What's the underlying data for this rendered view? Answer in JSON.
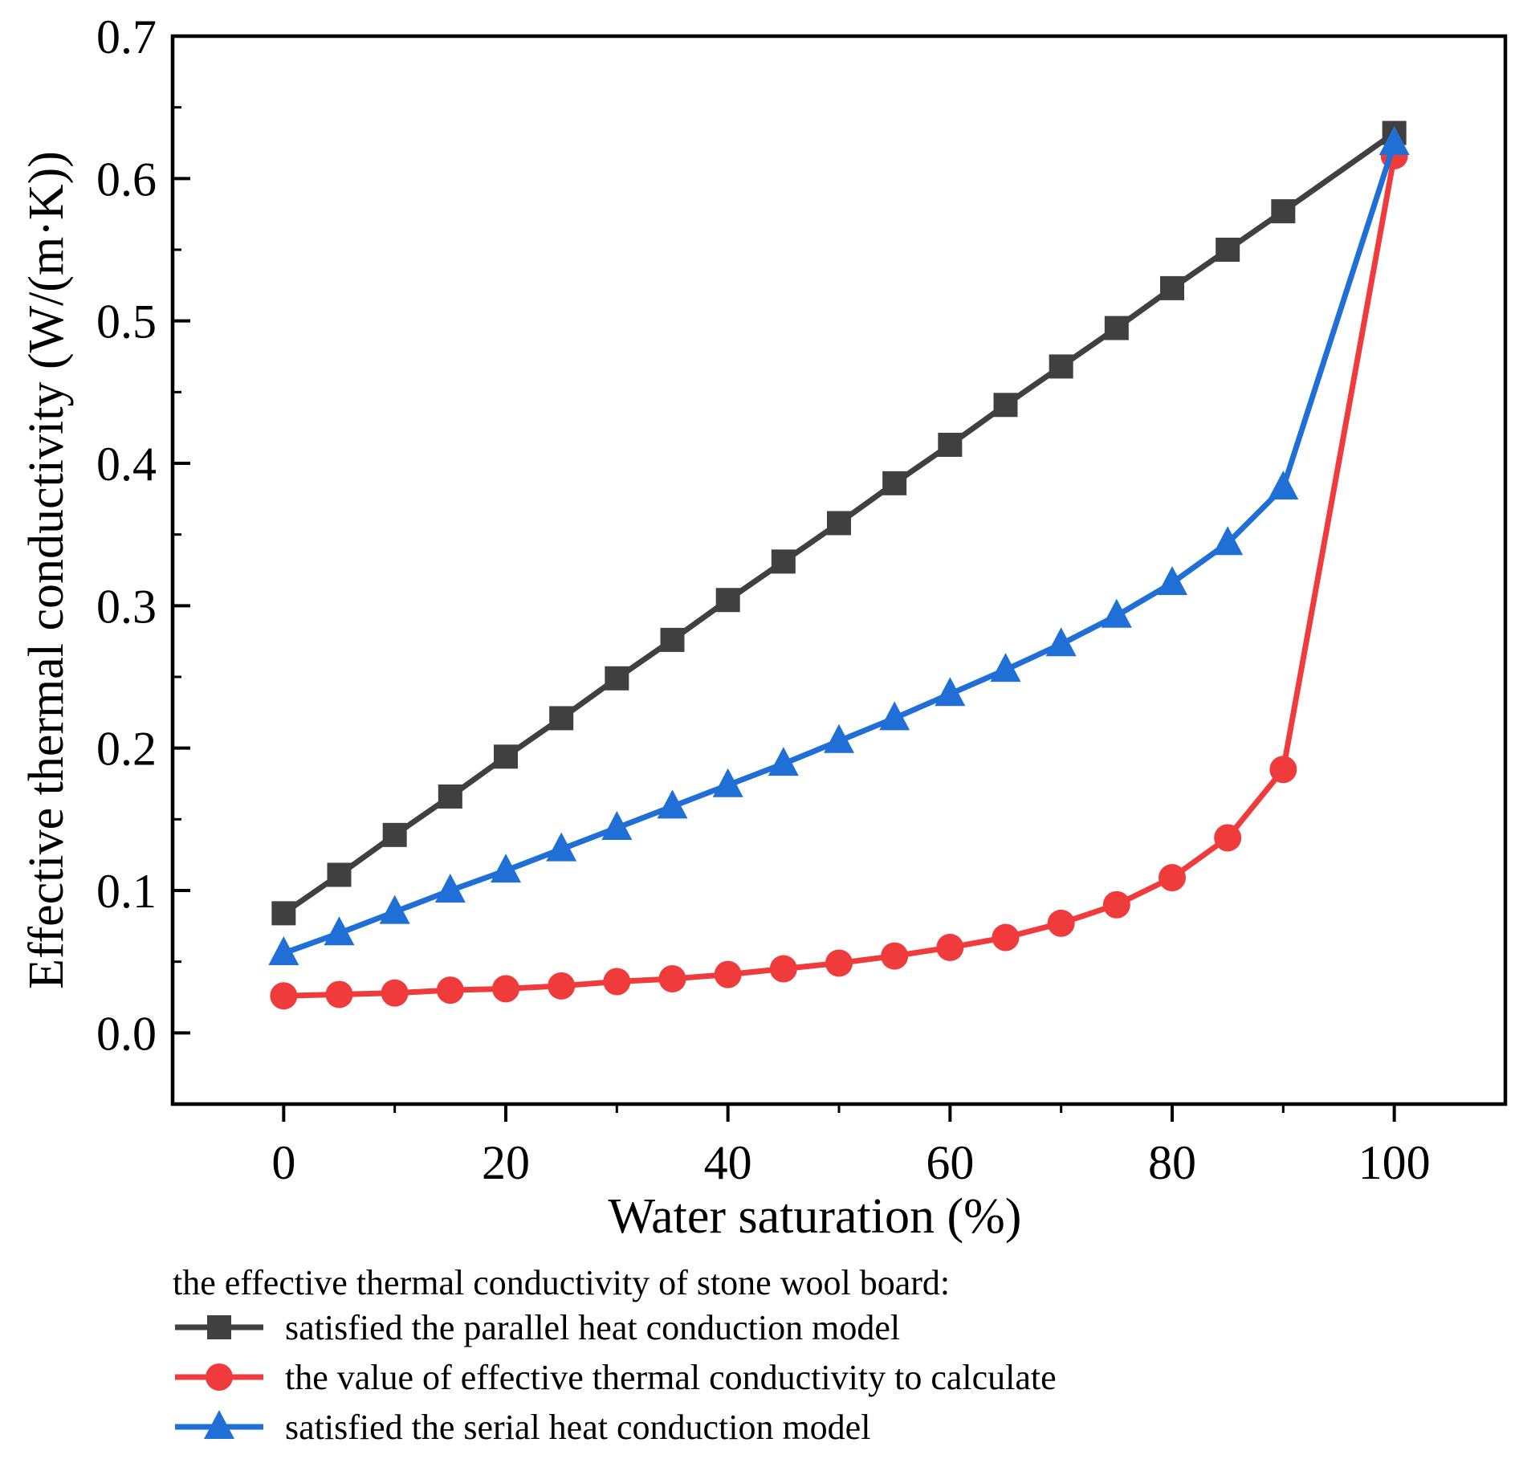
{
  "chart_data": {
    "type": "line",
    "xlabel": "Water saturation (%)",
    "ylabel": "Effective thermal conductivity (W/(m·K))",
    "xlim": [
      -10,
      110
    ],
    "ylim": [
      -0.05,
      0.7
    ],
    "xticks": [
      0,
      20,
      40,
      60,
      80,
      100
    ],
    "xtick_labels": [
      "0",
      "20",
      "40",
      "60",
      "80",
      "100"
    ],
    "yticks": [
      0.0,
      0.1,
      0.2,
      0.3,
      0.4,
      0.5,
      0.6,
      0.7
    ],
    "ytick_labels": [
      "0.0",
      "0.1",
      "0.2",
      "0.3",
      "0.4",
      "0.5",
      "0.6",
      "0.7"
    ],
    "legend_title": "the effective thermal conductivity of stone wool board:",
    "legend_position": "bottom",
    "series": [
      {
        "name": "satisfied the parallel heat conduction model",
        "color": "#404040",
        "marker": "square",
        "x": [
          0,
          5,
          10,
          15,
          20,
          25,
          30,
          35,
          40,
          45,
          50,
          55,
          60,
          65,
          70,
          75,
          80,
          85,
          90,
          100
        ],
        "values": [
          0.084,
          0.111,
          0.139,
          0.166,
          0.194,
          0.221,
          0.249,
          0.276,
          0.304,
          0.331,
          0.358,
          0.386,
          0.413,
          0.441,
          0.468,
          0.495,
          0.523,
          0.55,
          0.577,
          0.632
        ]
      },
      {
        "name": "the value of effective thermal conductivity to calculate",
        "color": "#ef3b3b",
        "marker": "circle",
        "x": [
          0,
          5,
          10,
          15,
          20,
          25,
          30,
          35,
          40,
          45,
          50,
          55,
          60,
          65,
          70,
          75,
          80,
          85,
          90,
          100
        ],
        "values": [
          0.026,
          0.027,
          0.028,
          0.03,
          0.031,
          0.033,
          0.036,
          0.038,
          0.041,
          0.045,
          0.049,
          0.054,
          0.06,
          0.067,
          0.077,
          0.09,
          0.109,
          0.137,
          0.185,
          0.616
        ]
      },
      {
        "name": "satisfied the serial heat conduction model",
        "color": "#1f6fd6",
        "marker": "triangle",
        "x": [
          0,
          5,
          10,
          15,
          20,
          25,
          30,
          35,
          40,
          45,
          50,
          55,
          60,
          65,
          70,
          75,
          80,
          85,
          90,
          100
        ],
        "values": [
          0.056,
          0.07,
          0.085,
          0.1,
          0.114,
          0.129,
          0.144,
          0.159,
          0.174,
          0.189,
          0.205,
          0.221,
          0.238,
          0.255,
          0.273,
          0.293,
          0.316,
          0.344,
          0.383,
          0.625
        ]
      }
    ]
  }
}
